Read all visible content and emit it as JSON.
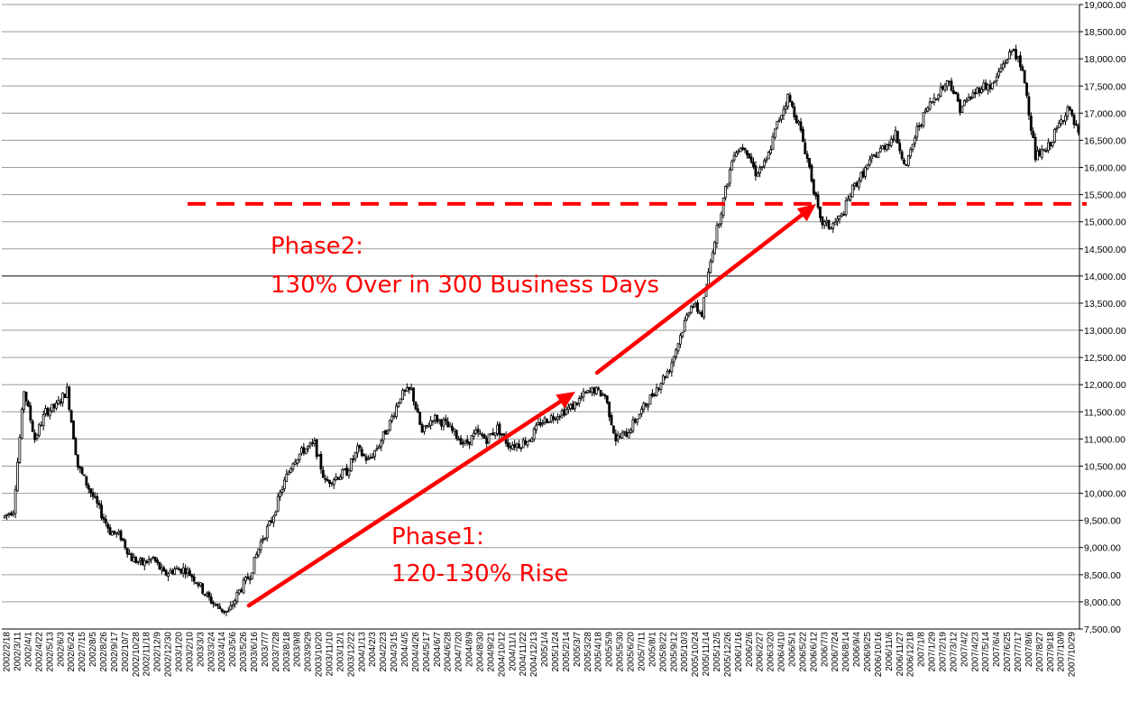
{
  "chart_data": {
    "type": "candlestick",
    "ylim": [
      7500,
      19000
    ],
    "y_ticks": [
      "7,500.00",
      "8,000.00",
      "8,500.00",
      "9,000.00",
      "9,500.00",
      "10,000.00",
      "10,500.00",
      "11,000.00",
      "11,500.00",
      "12,000.00",
      "12,500.00",
      "13,000.00",
      "13,500.00",
      "14,000.00",
      "14,500.00",
      "15,000.00",
      "15,500.00",
      "16,000.00",
      "16,500.00",
      "17,000.00",
      "17,500.00",
      "18,000.00",
      "18,500.00",
      "19,000.00"
    ],
    "highlight_gridline": 14000,
    "x_tick_labels": [
      "2002/2/18",
      "2002/3/11",
      "2002/4/1",
      "2002/4/22",
      "2002/5/13",
      "2002/6/3",
      "2002/6/24",
      "2002/7/15",
      "2002/8/5",
      "2002/8/26",
      "2002/9/17",
      "2002/10/7",
      "2002/10/28",
      "2002/11/18",
      "2002/12/9",
      "2002/12/30",
      "2003/1/20",
      "2003/2/10",
      "2003/3/3",
      "2003/3/24",
      "2003/4/14",
      "2003/5/6",
      "2003/5/26",
      "2003/6/16",
      "2003/7/7",
      "2003/7/28",
      "2003/8/18",
      "2003/9/8",
      "2003/9/29",
      "2003/10/20",
      "2003/11/10",
      "2003/12/1",
      "2003/12/22",
      "2004/1/13",
      "2004/2/3",
      "2004/2/23",
      "2004/3/15",
      "2004/4/5",
      "2004/4/26",
      "2004/5/17",
      "2004/6/7",
      "2004/6/28",
      "2004/7/20",
      "2004/8/9",
      "2004/8/30",
      "2004/9/21",
      "2004/10/12",
      "2004/11/1",
      "2004/11/22",
      "2004/12/13",
      "2005/1/4",
      "2005/1/24",
      "2005/2/14",
      "2005/3/7",
      "2005/3/28",
      "2005/4/18",
      "2005/5/9",
      "2005/5/30",
      "2005/6/20",
      "2005/7/11",
      "2005/8/1",
      "2005/8/22",
      "2005/9/12",
      "2005/10/3",
      "2005/10/24",
      "2005/11/14",
      "2005/12/5",
      "2005/12/26",
      "2006/1/16",
      "2006/2/6",
      "2006/2/27",
      "2006/3/20",
      "2006/4/10",
      "2006/5/1",
      "2006/5/22",
      "2006/6/12",
      "2006/7/3",
      "2006/7/24",
      "2006/8/14",
      "2006/9/4",
      "2006/9/25",
      "2006/10/16",
      "2006/11/6",
      "2006/11/27",
      "2006/12/18",
      "2007/1/8",
      "2007/1/29",
      "2007/2/19",
      "2007/3/12",
      "2007/4/2",
      "2007/4/23",
      "2007/5/14",
      "2007/6/4",
      "2007/6/25",
      "2007/7/17",
      "2007/8/6",
      "2007/8/27",
      "2007/9/18",
      "2007/10/9",
      "2007/10/29"
    ],
    "weekly_close": [
      9700,
      11900,
      11000,
      11500,
      11600,
      11900,
      10500,
      10100,
      9700,
      9300,
      9200,
      8800,
      8700,
      8800,
      8500,
      8600,
      8600,
      8400,
      8100,
      7900,
      7800,
      8200,
      8500,
      9100,
      9500,
      10100,
      10600,
      10800,
      10900,
      10200,
      10300,
      10400,
      10800,
      10600,
      10900,
      11300,
      11800,
      11900,
      11100,
      11400,
      11300,
      11100,
      10900,
      11100,
      11000,
      11200,
      10900,
      10900,
      11000,
      11300,
      11400,
      11500,
      11600,
      11800,
      11900,
      11800,
      11000,
      11100,
      11400,
      11700,
      12000,
      12300,
      12900,
      13500,
      13300,
      14500,
      15400,
      16300,
      16400,
      15900,
      16100,
      16800,
      17300,
      16800,
      16000,
      15000,
      14900,
      15100,
      15600,
      15900,
      16200,
      16400,
      16600,
      16000,
      16700,
      17100,
      17400,
      17600,
      17100,
      17300,
      17500,
      17500,
      17900,
      18200,
      17600,
      16200,
      16300,
      16700,
      17100,
      16600
    ],
    "annotations": {
      "phase1_line1": "Phase1:",
      "phase1_line2": "120-130% Rise",
      "phase2_line1": "Phase2:",
      "phase2_line2": "130% Over in 300 Business Days"
    },
    "reference_line_value": 15330,
    "colors": {
      "annotation": "#ff0000",
      "grid": "#9a9a9a",
      "grid_highlight": "#000000",
      "candle_up": "#ffffff",
      "candle_down": "#000000",
      "candle_edge": "#000000"
    }
  }
}
